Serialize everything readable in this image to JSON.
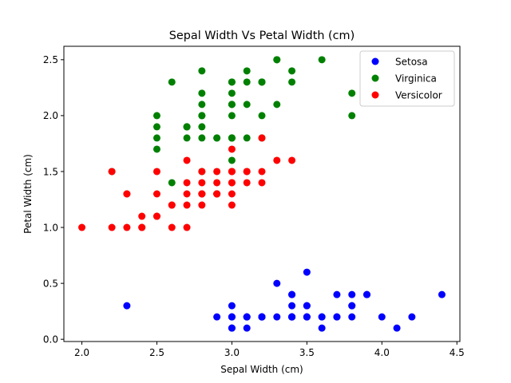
{
  "chart_data": {
    "type": "scatter",
    "title": "Sepal Width Vs Petal Width (cm)",
    "xlabel": "Sepal Width (cm)",
    "ylabel": "Petal Width (cm)",
    "xlim": [
      1.88,
      4.52
    ],
    "ylim": [
      -0.02,
      2.62
    ],
    "xticks": [
      "2.0",
      "2.5",
      "3.0",
      "3.5",
      "4.0",
      "4.5"
    ],
    "yticks": [
      "0.0",
      "0.5",
      "1.0",
      "1.5",
      "2.0",
      "2.5"
    ],
    "grid": false,
    "legend": "top-right",
    "series": [
      {
        "name": "Setosa",
        "color": "#0000ff",
        "points": [
          [
            3.5,
            0.2
          ],
          [
            3.0,
            0.2
          ],
          [
            3.2,
            0.2
          ],
          [
            3.1,
            0.2
          ],
          [
            3.6,
            0.2
          ],
          [
            3.9,
            0.4
          ],
          [
            3.4,
            0.3
          ],
          [
            3.4,
            0.2
          ],
          [
            2.9,
            0.2
          ],
          [
            3.1,
            0.1
          ],
          [
            3.7,
            0.2
          ],
          [
            3.4,
            0.2
          ],
          [
            3.0,
            0.1
          ],
          [
            3.0,
            0.1
          ],
          [
            4.0,
            0.2
          ],
          [
            4.4,
            0.4
          ],
          [
            3.9,
            0.4
          ],
          [
            3.5,
            0.3
          ],
          [
            3.8,
            0.3
          ],
          [
            3.8,
            0.3
          ],
          [
            3.4,
            0.2
          ],
          [
            3.7,
            0.4
          ],
          [
            3.6,
            0.2
          ],
          [
            3.3,
            0.5
          ],
          [
            3.4,
            0.2
          ],
          [
            3.0,
            0.2
          ],
          [
            3.4,
            0.4
          ],
          [
            3.5,
            0.2
          ],
          [
            3.4,
            0.2
          ],
          [
            3.2,
            0.2
          ],
          [
            3.1,
            0.2
          ],
          [
            3.4,
            0.4
          ],
          [
            4.1,
            0.1
          ],
          [
            4.2,
            0.2
          ],
          [
            3.1,
            0.2
          ],
          [
            3.2,
            0.2
          ],
          [
            3.5,
            0.2
          ],
          [
            3.6,
            0.1
          ],
          [
            3.0,
            0.2
          ],
          [
            3.4,
            0.2
          ],
          [
            3.5,
            0.3
          ],
          [
            2.3,
            0.3
          ],
          [
            3.2,
            0.2
          ],
          [
            3.5,
            0.6
          ],
          [
            3.8,
            0.4
          ],
          [
            3.0,
            0.3
          ],
          [
            3.8,
            0.2
          ],
          [
            3.2,
            0.2
          ],
          [
            3.7,
            0.2
          ],
          [
            3.3,
            0.2
          ]
        ]
      },
      {
        "name": "Virginica",
        "color": "#008000",
        "points": [
          [
            3.3,
            2.5
          ],
          [
            2.7,
            1.9
          ],
          [
            3.0,
            2.1
          ],
          [
            2.9,
            1.8
          ],
          [
            3.0,
            2.2
          ],
          [
            3.0,
            2.1
          ],
          [
            2.5,
            1.7
          ],
          [
            2.9,
            1.8
          ],
          [
            2.5,
            1.8
          ],
          [
            3.6,
            2.5
          ],
          [
            3.2,
            2.0
          ],
          [
            2.7,
            1.9
          ],
          [
            3.0,
            2.1
          ],
          [
            2.5,
            2.0
          ],
          [
            2.8,
            2.4
          ],
          [
            3.2,
            2.3
          ],
          [
            3.0,
            1.8
          ],
          [
            3.8,
            2.2
          ],
          [
            2.6,
            2.3
          ],
          [
            2.2,
            1.5
          ],
          [
            3.2,
            2.3
          ],
          [
            2.8,
            2.0
          ],
          [
            2.8,
            2.0
          ],
          [
            2.7,
            1.8
          ],
          [
            3.3,
            2.1
          ],
          [
            3.2,
            1.8
          ],
          [
            2.8,
            1.8
          ],
          [
            3.0,
            1.8
          ],
          [
            2.8,
            2.1
          ],
          [
            3.0,
            1.6
          ],
          [
            2.8,
            1.9
          ],
          [
            3.8,
            2.0
          ],
          [
            2.8,
            2.2
          ],
          [
            2.8,
            1.5
          ],
          [
            2.6,
            1.4
          ],
          [
            3.0,
            2.3
          ],
          [
            3.4,
            2.4
          ],
          [
            3.1,
            1.8
          ],
          [
            3.0,
            1.8
          ],
          [
            3.1,
            2.1
          ],
          [
            3.1,
            2.4
          ],
          [
            3.1,
            2.3
          ],
          [
            2.7,
            1.9
          ],
          [
            3.2,
            2.3
          ],
          [
            3.3,
            2.5
          ],
          [
            3.0,
            2.3
          ],
          [
            2.5,
            1.9
          ],
          [
            3.0,
            2.0
          ],
          [
            3.4,
            2.3
          ],
          [
            3.0,
            1.8
          ]
        ]
      },
      {
        "name": "Versicolor",
        "color": "#ff0000",
        "points": [
          [
            3.2,
            1.4
          ],
          [
            3.2,
            1.5
          ],
          [
            3.1,
            1.5
          ],
          [
            2.3,
            1.3
          ],
          [
            2.8,
            1.5
          ],
          [
            2.8,
            1.3
          ],
          [
            3.3,
            1.6
          ],
          [
            2.4,
            1.0
          ],
          [
            2.9,
            1.3
          ],
          [
            2.7,
            1.4
          ],
          [
            2.0,
            1.0
          ],
          [
            3.0,
            1.5
          ],
          [
            2.2,
            1.0
          ],
          [
            2.9,
            1.4
          ],
          [
            2.9,
            1.3
          ],
          [
            3.1,
            1.4
          ],
          [
            3.0,
            1.5
          ],
          [
            2.7,
            1.0
          ],
          [
            2.2,
            1.5
          ],
          [
            2.5,
            1.1
          ],
          [
            3.2,
            1.8
          ],
          [
            2.8,
            1.3
          ],
          [
            2.5,
            1.5
          ],
          [
            2.8,
            1.2
          ],
          [
            2.9,
            1.3
          ],
          [
            3.0,
            1.4
          ],
          [
            2.8,
            1.4
          ],
          [
            3.0,
            1.7
          ],
          [
            2.9,
            1.5
          ],
          [
            2.6,
            1.0
          ],
          [
            2.4,
            1.1
          ],
          [
            2.4,
            1.0
          ],
          [
            2.7,
            1.2
          ],
          [
            2.7,
            1.6
          ],
          [
            3.0,
            1.5
          ],
          [
            3.4,
            1.6
          ],
          [
            3.1,
            1.5
          ],
          [
            2.3,
            1.3
          ],
          [
            3.0,
            1.3
          ],
          [
            2.5,
            1.3
          ],
          [
            2.6,
            1.2
          ],
          [
            3.0,
            1.4
          ],
          [
            2.6,
            1.2
          ],
          [
            2.3,
            1.0
          ],
          [
            2.7,
            1.3
          ],
          [
            3.0,
            1.2
          ],
          [
            2.9,
            1.3
          ],
          [
            2.9,
            1.3
          ],
          [
            2.5,
            1.1
          ],
          [
            2.8,
            1.3
          ]
        ]
      }
    ]
  }
}
